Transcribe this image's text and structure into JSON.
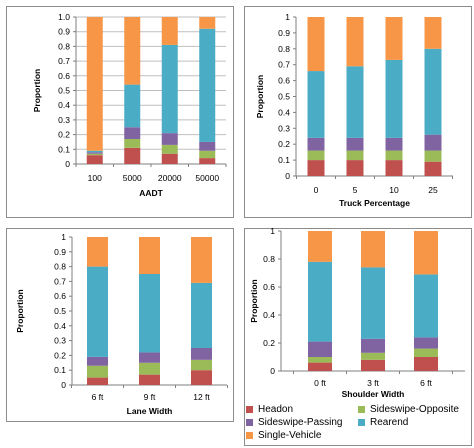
{
  "colors": {
    "Headon": "#c0504d",
    "Sideswipe-Opposite": "#9bbb59",
    "Sideswipe-Passing": "#8064a2",
    "Rearend": "#4bacc6",
    "Single-Vehicle": "#f79646",
    "grid": "#bfbfbf"
  },
  "legend": {
    "items": [
      {
        "label": "Headon",
        "color": "#c0504d"
      },
      {
        "label": "Sideswipe-Opposite",
        "color": "#9bbb59"
      },
      {
        "label": "Sideswipe-Passing",
        "color": "#8064a2"
      },
      {
        "label": "Rearend",
        "color": "#4bacc6"
      },
      {
        "label": "Single-Vehicle",
        "color": "#f79646"
      }
    ]
  },
  "chart_data": [
    {
      "type": "bar",
      "stacked": true,
      "title": "",
      "xlabel": "AADT",
      "ylabel": "Proportion",
      "ylim": [
        0,
        1
      ],
      "yticks": [
        "0",
        "0.1",
        "0.2",
        "0.3",
        "0.4",
        "0.5",
        "0.6",
        "0.7",
        "0.8",
        "0.9",
        "1.0"
      ],
      "grid": true,
      "categories": [
        "100",
        "5000",
        "20000",
        "50000"
      ],
      "series": [
        {
          "name": "Headon",
          "values": [
            0.06,
            0.11,
            0.07,
            0.04
          ]
        },
        {
          "name": "Sideswipe-Opposite",
          "values": [
            0.01,
            0.06,
            0.06,
            0.05
          ]
        },
        {
          "name": "Sideswipe-Passing",
          "values": [
            0.01,
            0.08,
            0.08,
            0.06
          ]
        },
        {
          "name": "Rearend",
          "values": [
            0.01,
            0.29,
            0.6,
            0.77
          ]
        },
        {
          "name": "Single-Vehicle",
          "values": [
            0.91,
            0.46,
            0.19,
            0.08
          ]
        }
      ]
    },
    {
      "type": "bar",
      "stacked": true,
      "title": "",
      "xlabel": "Truck Percentage",
      "ylabel": "Proportion",
      "ylim": [
        0,
        1
      ],
      "yticks": [
        "0",
        "0.1",
        "0.2",
        "0.3",
        "0.4",
        "0.5",
        "0.6",
        "0.7",
        "0.8",
        "0.9",
        "1"
      ],
      "grid": false,
      "categories": [
        "0",
        "5",
        "10",
        "25"
      ],
      "series": [
        {
          "name": "Headon",
          "values": [
            0.1,
            0.1,
            0.1,
            0.09
          ]
        },
        {
          "name": "Sideswipe-Opposite",
          "values": [
            0.06,
            0.06,
            0.06,
            0.07
          ]
        },
        {
          "name": "Sideswipe-Passing",
          "values": [
            0.08,
            0.08,
            0.08,
            0.1
          ]
        },
        {
          "name": "Rearend",
          "values": [
            0.42,
            0.45,
            0.49,
            0.54
          ]
        },
        {
          "name": "Single-Vehicle",
          "values": [
            0.34,
            0.31,
            0.27,
            0.2
          ]
        }
      ]
    },
    {
      "type": "bar",
      "stacked": true,
      "title": "",
      "xlabel": "Lane Width",
      "ylabel": "Proportion",
      "ylim": [
        0,
        1
      ],
      "yticks": [
        "0",
        "0.1",
        "0.2",
        "0.3",
        "0.4",
        "0.5",
        "0.6",
        "0.7",
        "0.8",
        "0.9",
        "1"
      ],
      "grid": false,
      "categories": [
        "6 ft",
        "9 ft",
        "12 ft"
      ],
      "series": [
        {
          "name": "Headon",
          "values": [
            0.05,
            0.07,
            0.1
          ]
        },
        {
          "name": "Sideswipe-Opposite",
          "values": [
            0.08,
            0.08,
            0.07
          ]
        },
        {
          "name": "Sideswipe-Passing",
          "values": [
            0.06,
            0.07,
            0.08
          ]
        },
        {
          "name": "Rearend",
          "values": [
            0.61,
            0.53,
            0.44
          ]
        },
        {
          "name": "Single-Vehicle",
          "values": [
            0.2,
            0.25,
            0.31
          ]
        }
      ]
    },
    {
      "type": "bar",
      "stacked": true,
      "title": "",
      "xlabel": "Shoulder Width",
      "ylabel": "Proportion",
      "ylim": [
        0,
        1
      ],
      "yticks": [
        "0",
        "0.2",
        "0.4",
        "0.6",
        "0.8",
        "1"
      ],
      "grid": false,
      "categories": [
        "0 ft",
        "3 ft",
        "6 ft"
      ],
      "series": [
        {
          "name": "Headon",
          "values": [
            0.06,
            0.08,
            0.1
          ]
        },
        {
          "name": "Sideswipe-Opposite",
          "values": [
            0.04,
            0.05,
            0.06
          ]
        },
        {
          "name": "Sideswipe-Passing",
          "values": [
            0.11,
            0.1,
            0.08
          ]
        },
        {
          "name": "Rearend",
          "values": [
            0.57,
            0.51,
            0.45
          ]
        },
        {
          "name": "Single-Vehicle",
          "values": [
            0.22,
            0.26,
            0.31
          ]
        }
      ]
    }
  ]
}
